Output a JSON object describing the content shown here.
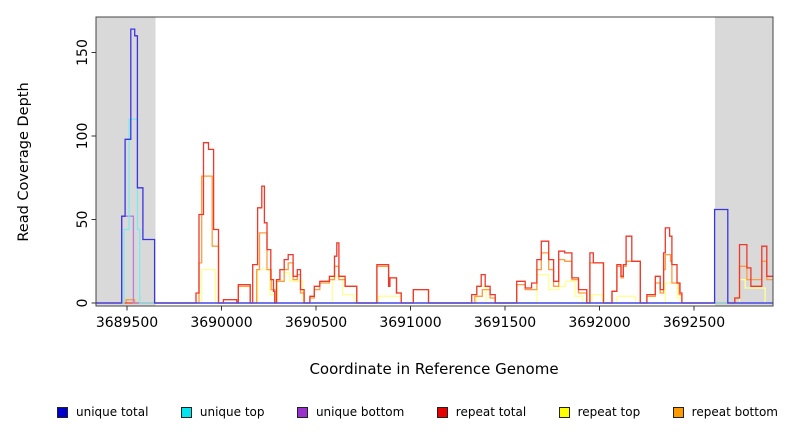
{
  "chart_data": {
    "type": "line",
    "subtype": "step-coverage-plot",
    "title": "",
    "xlabel": "Coordinate in Reference Genome",
    "ylabel": "Read Coverage Depth",
    "xlim": [
      3689336,
      3692918
    ],
    "ylim": [
      0,
      170
    ],
    "x_ticks": [
      3689500,
      3690000,
      3690500,
      3691000,
      3691500,
      3692000,
      3692500
    ],
    "y_ticks": [
      0,
      50,
      100,
      150
    ],
    "grid": false,
    "legend_position": "bottom",
    "frame_color": "#444444",
    "shaded_regions": [
      {
        "name": "left-gray-band",
        "x0": 3689336,
        "x1": 3689651,
        "color": "#d9d9d9"
      },
      {
        "name": "right-gray-band",
        "x0": 3692611,
        "x1": 3692918,
        "color": "#d9d9d9"
      }
    ],
    "draw_order": [
      4,
      5,
      3,
      2,
      1,
      0
    ],
    "series": [
      {
        "name": "unique total",
        "legend_color": "#0000cc",
        "line_color": "#3a35e3",
        "points": [
          [
            3689336,
            0
          ],
          [
            3689472,
            52
          ],
          [
            3689490,
            98
          ],
          [
            3689520,
            164
          ],
          [
            3689541,
            160
          ],
          [
            3689555,
            69
          ],
          [
            3689584,
            38
          ],
          [
            3689646,
            0
          ],
          [
            3692609,
            56
          ],
          [
            3692679,
            0
          ],
          [
            3692918,
            0
          ]
        ]
      },
      {
        "name": "unique top",
        "legend_color": "#00e5ee",
        "line_color": "#7fe9f2",
        "points": [
          [
            3689336,
            0
          ],
          [
            3689484,
            44
          ],
          [
            3689511,
            110
          ],
          [
            3689555,
            44
          ],
          [
            3689567,
            0
          ],
          [
            3692918,
            0
          ]
        ]
      },
      {
        "name": "unique bottom",
        "legend_color": "#9932cc",
        "line_color": "#b87fd6",
        "points": [
          [
            3689336,
            0
          ],
          [
            3689472,
            52
          ],
          [
            3689534,
            0
          ],
          [
            3692918,
            0
          ]
        ]
      },
      {
        "name": "repeat total",
        "legend_color": "#e60000",
        "line_color": "#f0372b",
        "points": [
          [
            3689336,
            0
          ],
          [
            3689865,
            6
          ],
          [
            3689881,
            53
          ],
          [
            3689905,
            96
          ],
          [
            3689931,
            92
          ],
          [
            3689958,
            44
          ],
          [
            3689984,
            0
          ],
          [
            3690010,
            2
          ],
          [
            3690081,
            0
          ],
          [
            3690089,
            11
          ],
          [
            3690152,
            0
          ],
          [
            3690165,
            23
          ],
          [
            3690191,
            57
          ],
          [
            3690213,
            70
          ],
          [
            3690227,
            48
          ],
          [
            3690241,
            32
          ],
          [
            3690261,
            14
          ],
          [
            3690275,
            7
          ],
          [
            3690282,
            0
          ],
          [
            3690291,
            14
          ],
          [
            3690309,
            20
          ],
          [
            3690332,
            26
          ],
          [
            3690353,
            29
          ],
          [
            3690379,
            16
          ],
          [
            3690401,
            20
          ],
          [
            3690418,
            8
          ],
          [
            3690437,
            0
          ],
          [
            3690468,
            4
          ],
          [
            3690491,
            10
          ],
          [
            3690520,
            13
          ],
          [
            3690571,
            16
          ],
          [
            3690598,
            28
          ],
          [
            3690610,
            36
          ],
          [
            3690621,
            16
          ],
          [
            3690654,
            10
          ],
          [
            3690716,
            0
          ],
          [
            3690822,
            23
          ],
          [
            3690884,
            10
          ],
          [
            3690891,
            15
          ],
          [
            3690926,
            6
          ],
          [
            3690951,
            0
          ],
          [
            3691015,
            8
          ],
          [
            3691095,
            0
          ],
          [
            3691324,
            5
          ],
          [
            3691351,
            10
          ],
          [
            3691374,
            17
          ],
          [
            3691395,
            10
          ],
          [
            3691421,
            5
          ],
          [
            3691448,
            0
          ],
          [
            3691562,
            13
          ],
          [
            3691607,
            9
          ],
          [
            3691641,
            12
          ],
          [
            3691669,
            26
          ],
          [
            3691692,
            37
          ],
          [
            3691731,
            26
          ],
          [
            3691757,
            13
          ],
          [
            3691784,
            31
          ],
          [
            3691816,
            30
          ],
          [
            3691854,
            15
          ],
          [
            3691889,
            8
          ],
          [
            3691933,
            0
          ],
          [
            3691949,
            30
          ],
          [
            3691967,
            24
          ],
          [
            3692021,
            0
          ],
          [
            3692066,
            7
          ],
          [
            3692092,
            23
          ],
          [
            3692114,
            16
          ],
          [
            3692126,
            23
          ],
          [
            3692141,
            40
          ],
          [
            3692171,
            25
          ],
          [
            3692216,
            0
          ],
          [
            3692251,
            5
          ],
          [
            3692295,
            16
          ],
          [
            3692321,
            8
          ],
          [
            3692339,
            30
          ],
          [
            3692348,
            45
          ],
          [
            3692371,
            40
          ],
          [
            3692383,
            23
          ],
          [
            3692410,
            12
          ],
          [
            3692426,
            6
          ],
          [
            3692436,
            0
          ],
          [
            3692716,
            3
          ],
          [
            3692741,
            35
          ],
          [
            3692780,
            21
          ],
          [
            3692801,
            10
          ],
          [
            3692859,
            34
          ],
          [
            3692885,
            16
          ],
          [
            3692918,
            16
          ]
        ]
      },
      {
        "name": "repeat top",
        "legend_color": "#ffff00",
        "line_color": "#ffff94",
        "points": [
          [
            3689336,
            0
          ],
          [
            3689895,
            20
          ],
          [
            3689967,
            0
          ],
          [
            3690191,
            20
          ],
          [
            3690256,
            5
          ],
          [
            3690281,
            0
          ],
          [
            3690296,
            13
          ],
          [
            3690332,
            18
          ],
          [
            3690361,
            13
          ],
          [
            3690431,
            0
          ],
          [
            3690586,
            16
          ],
          [
            3690641,
            5
          ],
          [
            3690701,
            0
          ],
          [
            3690830,
            4
          ],
          [
            3690951,
            0
          ],
          [
            3691350,
            10
          ],
          [
            3691400,
            0
          ],
          [
            3691669,
            17
          ],
          [
            3691731,
            8
          ],
          [
            3691784,
            10
          ],
          [
            3691821,
            13
          ],
          [
            3691871,
            4
          ],
          [
            3691911,
            0
          ],
          [
            3691960,
            5
          ],
          [
            3692016,
            0
          ],
          [
            3692092,
            4
          ],
          [
            3692191,
            0
          ],
          [
            3692348,
            12
          ],
          [
            3692410,
            3
          ],
          [
            3692436,
            0
          ],
          [
            3692741,
            14
          ],
          [
            3692771,
            9
          ],
          [
            3692876,
            0
          ],
          [
            3692918,
            0
          ]
        ]
      },
      {
        "name": "repeat bottom",
        "legend_color": "#ff9900",
        "line_color": "#ff9d3c",
        "points": [
          [
            3689336,
            0
          ],
          [
            3689495,
            2
          ],
          [
            3689540,
            0
          ],
          [
            3689881,
            24
          ],
          [
            3689895,
            76
          ],
          [
            3689951,
            34
          ],
          [
            3689984,
            0
          ],
          [
            3690089,
            10
          ],
          [
            3690152,
            0
          ],
          [
            3690186,
            20
          ],
          [
            3690201,
            42
          ],
          [
            3690241,
            20
          ],
          [
            3690263,
            8
          ],
          [
            3690282,
            0
          ],
          [
            3690291,
            13
          ],
          [
            3690332,
            20
          ],
          [
            3690353,
            24
          ],
          [
            3690379,
            14
          ],
          [
            3690401,
            17
          ],
          [
            3690418,
            6
          ],
          [
            3690437,
            0
          ],
          [
            3690468,
            3
          ],
          [
            3690491,
            8
          ],
          [
            3690520,
            12
          ],
          [
            3690571,
            14
          ],
          [
            3690598,
            22
          ],
          [
            3690621,
            14
          ],
          [
            3690654,
            10
          ],
          [
            3690716,
            0
          ],
          [
            3690822,
            22
          ],
          [
            3690884,
            10
          ],
          [
            3690891,
            15
          ],
          [
            3690926,
            6
          ],
          [
            3690951,
            0
          ],
          [
            3691015,
            8
          ],
          [
            3691095,
            0
          ],
          [
            3691340,
            4
          ],
          [
            3691380,
            8
          ],
          [
            3691421,
            3
          ],
          [
            3691448,
            0
          ],
          [
            3691562,
            11
          ],
          [
            3691607,
            8
          ],
          [
            3691669,
            20
          ],
          [
            3691692,
            30
          ],
          [
            3691731,
            20
          ],
          [
            3691757,
            10
          ],
          [
            3691784,
            26
          ],
          [
            3691816,
            25
          ],
          [
            3691854,
            14
          ],
          [
            3691889,
            6
          ],
          [
            3691933,
            0
          ],
          [
            3691949,
            24
          ],
          [
            3692021,
            0
          ],
          [
            3692066,
            7
          ],
          [
            3692092,
            22
          ],
          [
            3692114,
            15
          ],
          [
            3692126,
            22
          ],
          [
            3692141,
            25
          ],
          [
            3692216,
            0
          ],
          [
            3692251,
            4
          ],
          [
            3692295,
            12
          ],
          [
            3692321,
            6
          ],
          [
            3692339,
            20
          ],
          [
            3692348,
            29
          ],
          [
            3692376,
            25
          ],
          [
            3692383,
            12
          ],
          [
            3692421,
            5
          ],
          [
            3692436,
            0
          ],
          [
            3692716,
            3
          ],
          [
            3692741,
            22
          ],
          [
            3692780,
            14
          ],
          [
            3692859,
            25
          ],
          [
            3692885,
            14
          ],
          [
            3692918,
            14
          ]
        ]
      }
    ]
  },
  "legend": {
    "items": [
      "unique total",
      "unique top",
      "unique bottom",
      "repeat total",
      "repeat top",
      "repeat bottom"
    ]
  }
}
